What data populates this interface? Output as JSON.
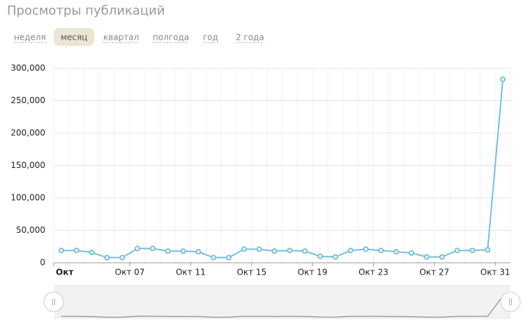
{
  "tabs": [
    "неделя",
    "месяц",
    "квартал",
    "полгода",
    "год",
    "2 года"
  ],
  "active_tab": 1,
  "chart_data": {
    "type": "line",
    "title": "Просмотры публикаций",
    "categories": [
      "Окт",
      null,
      null,
      null,
      null,
      "Окт 07",
      null,
      null,
      null,
      "Окт 11",
      null,
      null,
      null,
      "Окт 15",
      null,
      null,
      null,
      "Окт 19",
      null,
      null,
      null,
      "Окт 23",
      null,
      null,
      null,
      "Окт 27",
      null,
      null,
      null,
      "Окт 31"
    ],
    "series": [
      {
        "color": "#74bfdf",
        "values": [
          19000,
          19000,
          16000,
          8000,
          8000,
          22000,
          22000,
          18000,
          18000,
          17000,
          8000,
          8000,
          21000,
          21000,
          18000,
          19000,
          18000,
          10000,
          9000,
          19000,
          21000,
          19000,
          17000,
          15000,
          9000,
          9000,
          19000,
          19000,
          20000,
          283000
        ]
      }
    ],
    "ylim": [
      0,
      300000
    ],
    "yticks": [
      0,
      {
        "value": 50000,
        "label": "50,000"
      },
      {
        "value": 100000,
        "label": "100,000"
      },
      {
        "value": 150000,
        "label": "150,000"
      },
      {
        "value": 200000,
        "label": "200,000"
      },
      {
        "value": 250000,
        "label": "250,000"
      },
      {
        "value": 300000,
        "label": "300,000"
      }
    ],
    "grid": true
  }
}
